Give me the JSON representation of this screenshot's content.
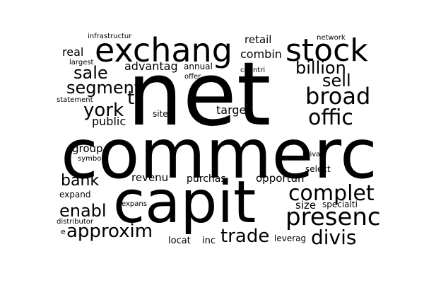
{
  "cloud": {
    "background_color": "#ffffff",
    "text_color": "#000000",
    "words": {
      "net": "net",
      "commerc": "commerc",
      "capit": "capit",
      "exchang": "exchang",
      "stock": "stock",
      "presenc": "presenc",
      "complet": "complet",
      "broad": "broad",
      "offic": "offic",
      "approxim": "approxim",
      "divis": "divis",
      "trade": "trade",
      "billion": "billion",
      "segment": "segment",
      "sale": "sale",
      "sell": "sell",
      "york": "york",
      "bank": "bank",
      "enabl": "enabl",
      "t": "t",
      "advantag": "advantag",
      "real": "real",
      "combin": "combin",
      "retail": "retail",
      "public": "public",
      "target": "target",
      "group": "group",
      "revenu": "revenu",
      "purchas": "purchas",
      "opportun": "opportun",
      "size": "size",
      "expand": "expand",
      "locat": "locat",
      "inc": "inc",
      "leverag": "leverag",
      "select": "select",
      "specialti": "specialti",
      "annual": "annual",
      "site": "site",
      "infrastructur": "infrastructur",
      "network": "network",
      "largest": "largest",
      "offer": "offer",
      "countri": "countri",
      "statement": "statement",
      "symbol": "symbol",
      "privat": "privat",
      "expans": "expans",
      "distributor": "distributor",
      "e": "e"
    }
  }
}
